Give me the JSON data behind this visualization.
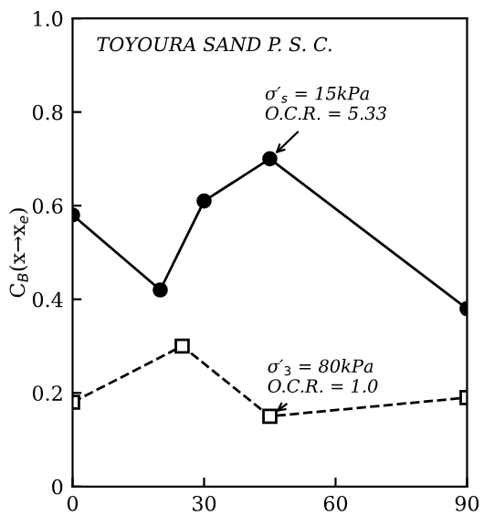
{
  "chart_data": {
    "type": "line",
    "ylabel": "C$_{B}$(x→x$_{e}$)",
    "annotations": [
      "TOYOURA SAND P. S. C.",
      {
        "text": "σ′$_{s}$ = 15kPa\nO.C.R. = 5.33",
        "x": 45,
        "y": 0.7
      },
      {
        "text": "σ′$_{3}$ = 80kPa\nO.C.R. = 1.0",
        "x": 45,
        "y": 0.15
      }
    ],
    "series": [
      {
        "color": "#000000",
        "x": [
          0,
          20,
          30,
          45,
          90
        ],
        "values": [
          0.58,
          0.42,
          0.61,
          0.7,
          0.38
        ],
        "marker": "circle",
        "line_style": "solid"
      },
      {
        "color": "#000000",
        "x": [
          0,
          25,
          45,
          90
        ],
        "values": [
          0.18,
          0.3,
          0.15,
          0.19
        ],
        "marker": "square",
        "line_style": "dashed"
      }
    ],
    "xlim": [
      0,
      90
    ],
    "ylim": [
      0,
      1.0
    ],
    "xticks": [
      0,
      30,
      60,
      90
    ],
    "yticks": [
      {
        "value": 0,
        "label": "0"
      },
      0.2,
      0.4,
      0.6,
      0.8,
      {
        "value": 1.0,
        "label": "1.0"
      }
    ],
    "grid": false,
    "legend": false
  }
}
